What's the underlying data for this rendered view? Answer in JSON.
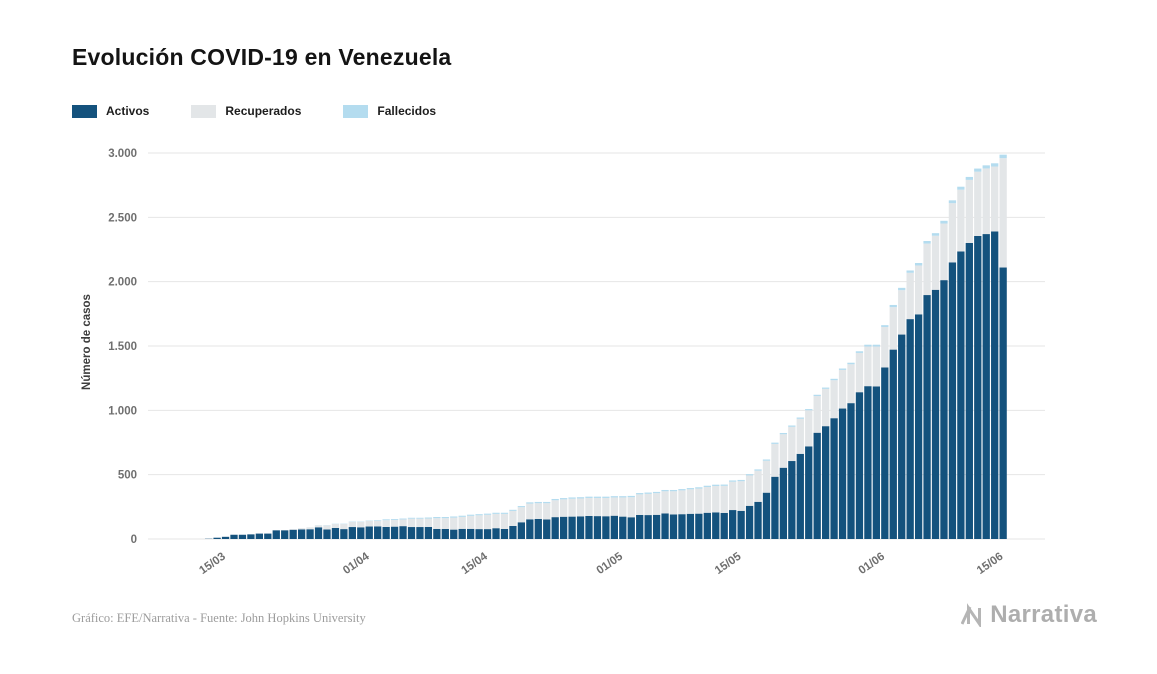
{
  "title": "Evolución COVID-19 en Venezuela",
  "y_axis_label": "Número de casos",
  "footer": {
    "credit": "Gráfico: EFE/Narrativa - Fuente: John Hopkins University"
  },
  "logo": {
    "text": "Narrativa",
    "icon": "narrativa-n-mark"
  },
  "colors": {
    "activos": "#14527D",
    "recuperados": "#E3E6E8",
    "fallecidos": "#B4DCEF",
    "gridline": "#E6E6E6",
    "axis_text": "#6F6F6F"
  },
  "chart_data": {
    "type": "bar",
    "stacked": true,
    "title": "Evolución COVID-19 en Venezuela",
    "xlabel": "",
    "ylabel": "Número de casos",
    "ylim": [
      0,
      3000
    ],
    "grid": "horizontal",
    "legend_position": "top-left",
    "y_ticks": [
      {
        "value": 0,
        "label": "0"
      },
      {
        "value": 500,
        "label": "500"
      },
      {
        "value": 1000,
        "label": "1.000"
      },
      {
        "value": 1500,
        "label": "1.500"
      },
      {
        "value": 2000,
        "label": "2.000"
      },
      {
        "value": 2500,
        "label": "2.500"
      },
      {
        "value": 3000,
        "label": "3.000"
      }
    ],
    "x_ticks": [
      {
        "index": 2,
        "label": "15/03"
      },
      {
        "index": 19,
        "label": "01/04"
      },
      {
        "index": 33,
        "label": "15/04"
      },
      {
        "index": 49,
        "label": "01/05"
      },
      {
        "index": 63,
        "label": "15/05"
      },
      {
        "index": 80,
        "label": "01/06"
      },
      {
        "index": 94,
        "label": "15/06"
      }
    ],
    "dates": [
      "13/03",
      "14/03",
      "15/03",
      "16/03",
      "17/03",
      "18/03",
      "19/03",
      "20/03",
      "21/03",
      "22/03",
      "23/03",
      "24/03",
      "25/03",
      "26/03",
      "27/03",
      "28/03",
      "29/03",
      "30/03",
      "31/03",
      "01/04",
      "02/04",
      "03/04",
      "04/04",
      "05/04",
      "06/04",
      "07/04",
      "08/04",
      "09/04",
      "10/04",
      "11/04",
      "12/04",
      "13/04",
      "14/04",
      "15/04",
      "16/04",
      "17/04",
      "18/04",
      "19/04",
      "20/04",
      "21/04",
      "22/04",
      "23/04",
      "24/04",
      "25/04",
      "26/04",
      "27/04",
      "28/04",
      "29/04",
      "30/04",
      "01/05",
      "02/05",
      "03/05",
      "04/05",
      "05/05",
      "06/05",
      "07/05",
      "08/05",
      "09/05",
      "10/05",
      "11/05",
      "12/05",
      "13/05",
      "14/05",
      "15/05",
      "16/05",
      "17/05",
      "18/05",
      "19/05",
      "20/05",
      "21/05",
      "22/05",
      "23/05",
      "24/05",
      "25/05",
      "26/05",
      "27/05",
      "28/05",
      "29/05",
      "30/05",
      "31/05",
      "01/06",
      "02/06",
      "03/06",
      "04/06",
      "05/06",
      "06/06",
      "07/06",
      "08/06",
      "09/06",
      "10/06",
      "11/06",
      "12/06",
      "13/06",
      "14/06",
      "15/06"
    ],
    "series": [
      {
        "name": "Activos",
        "color": "#14527D",
        "values": [
          2,
          10,
          17,
          33,
          33,
          36,
          42,
          42,
          68,
          68,
          72,
          75,
          76,
          91,
          74,
          86,
          77,
          93,
          91,
          97,
          98,
          94,
          96,
          100,
          93,
          93,
          94,
          78,
          78,
          73,
          79,
          79,
          77,
          77,
          84,
          78,
          101,
          130,
          153,
          156,
          152,
          170,
          173,
          174,
          176,
          179,
          178,
          177,
          181,
          174,
          169,
          187,
          186,
          188,
          199,
          191,
          193,
          196,
          197,
          204,
          207,
          203,
          225,
          219,
          258,
          289,
          360,
          484,
          554,
          606,
          662,
          720,
          826,
          877,
          939,
          1014,
          1056,
          1141,
          1188,
          1186,
          1333,
          1472,
          1589,
          1709,
          1746,
          1896,
          1937,
          2012,
          2150,
          2235,
          2301,
          2355,
          2370,
          2390,
          2110
        ]
      },
      {
        "name": "Recuperados",
        "color": "#E3E6E8",
        "values": [
          0,
          0,
          0,
          0,
          0,
          0,
          0,
          0,
          2,
          2,
          5,
          9,
          15,
          15,
          31,
          31,
          39,
          39,
          41,
          43,
          43,
          52,
          52,
          52,
          65,
          65,
          65,
          84,
          84,
          93,
          93,
          101,
          107,
          111,
          111,
          117,
          117,
          117,
          122,
          122,
          126,
          131,
          135,
          139,
          139,
          140,
          141,
          142,
          142,
          149,
          156,
          160,
          165,
          168,
          172,
          180,
          185,
          190,
          195,
          200,
          205,
          210,
          220,
          230,
          236,
          242,
          248,
          255,
          260,
          266,
          272,
          280,
          285,
          290,
          295,
          300,
          302,
          305,
          308,
          310,
          315,
          330,
          345,
          360,
          380,
          400,
          420,
          440,
          460,
          480,
          490,
          500,
          510,
          505,
          850
        ]
      },
      {
        "name": "Fallecidos",
        "color": "#B4DCEF",
        "values": [
          0,
          0,
          0,
          0,
          0,
          0,
          0,
          0,
          0,
          0,
          0,
          0,
          0,
          1,
          2,
          2,
          3,
          3,
          3,
          3,
          5,
          7,
          7,
          7,
          7,
          7,
          8,
          9,
          9,
          9,
          9,
          9,
          9,
          9,
          9,
          9,
          9,
          9,
          10,
          10,
          10,
          10,
          10,
          10,
          10,
          10,
          10,
          10,
          10,
          10,
          10,
          10,
          10,
          10,
          10,
          10,
          10,
          10,
          10,
          10,
          10,
          10,
          10,
          10,
          10,
          10,
          10,
          10,
          10,
          10,
          10,
          10,
          10,
          10,
          11,
          11,
          12,
          13,
          14,
          14,
          14,
          17,
          18,
          18,
          19,
          20,
          20,
          21,
          22,
          23,
          23,
          24,
          24,
          25,
          27
        ]
      }
    ]
  }
}
